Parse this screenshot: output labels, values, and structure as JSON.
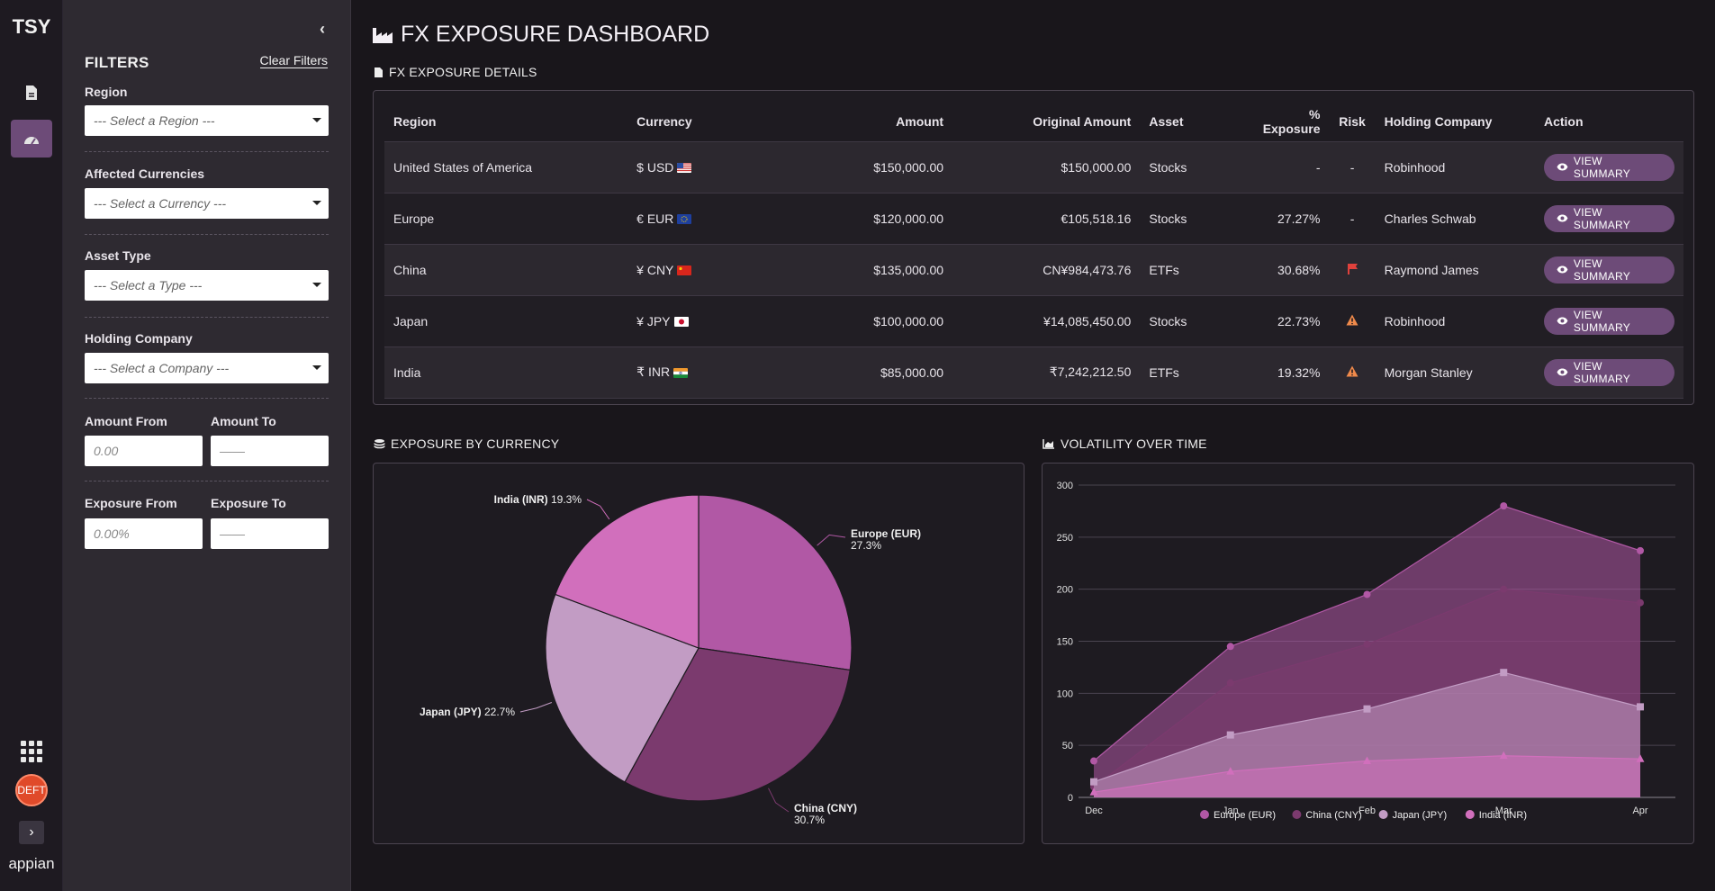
{
  "nav": {
    "logo_text": "TSY",
    "avatar_text": "DEFT",
    "brand": "appian"
  },
  "filters": {
    "title": "FILTERS",
    "clear_label": "Clear Filters",
    "region_label": "Region",
    "region_placeholder": "--- Select a Region ---",
    "currency_label": "Affected Currencies",
    "currency_placeholder": "--- Select a Currency ---",
    "asset_label": "Asset Type",
    "asset_placeholder": "--- Select a Type ---",
    "company_label": "Holding Company",
    "company_placeholder": "--- Select a Company ---",
    "amount_from_label": "Amount From",
    "amount_from_placeholder": "0.00",
    "amount_to_label": "Amount To",
    "amount_to_placeholder": "——",
    "exposure_from_label": "Exposure From",
    "exposure_from_placeholder": "0.00%",
    "exposure_to_label": "Exposure To",
    "exposure_to_placeholder": "——"
  },
  "page": {
    "title": "FX EXPOSURE DASHBOARD",
    "details_title": "FX EXPOSURE DETAILS",
    "pie_title": "EXPOSURE BY CURRENCY",
    "line_title": "VOLATILITY OVER TIME"
  },
  "table": {
    "headers": {
      "region": "Region",
      "currency": "Currency",
      "amount": "Amount",
      "original": "Original Amount",
      "asset": "Asset",
      "exposure": "% Exposure",
      "risk": "Risk",
      "company": "Holding Company",
      "action": "Action"
    },
    "rows": [
      {
        "region": "United States of America",
        "currency": "$ USD",
        "flag": "us",
        "amount": "$150,000.00",
        "original": "$150,000.00",
        "asset": "Stocks",
        "exposure": "-",
        "risk": "-",
        "risk_icon": "",
        "company": "Robinhood",
        "action": "VIEW SUMMARY"
      },
      {
        "region": "Europe",
        "currency": "€ EUR",
        "flag": "eu",
        "amount": "$120,000.00",
        "original": "€105,518.16",
        "asset": "Stocks",
        "exposure": "27.27%",
        "risk": "-",
        "risk_icon": "",
        "company": "Charles Schwab",
        "action": "VIEW SUMMARY"
      },
      {
        "region": "China",
        "currency": "¥ CNY",
        "flag": "cn",
        "amount": "$135,000.00",
        "original": "CN¥984,473.76",
        "asset": "ETFs",
        "exposure": "30.68%",
        "risk": "",
        "risk_icon": "flag-icon",
        "company": "Raymond James",
        "action": "VIEW SUMMARY"
      },
      {
        "region": "Japan",
        "currency": "¥ JPY",
        "flag": "jp",
        "amount": "$100,000.00",
        "original": "¥14,085,450.00",
        "asset": "Stocks",
        "exposure": "22.73%",
        "risk": "",
        "risk_icon": "warning-icon",
        "company": "Robinhood",
        "action": "VIEW SUMMARY"
      },
      {
        "region": "India",
        "currency": "₹ INR",
        "flag": "in",
        "amount": "$85,000.00",
        "original": "₹7,242,212.50",
        "asset": "ETFs",
        "exposure": "19.32%",
        "risk": "",
        "risk_icon": "warning-icon",
        "company": "Morgan Stanley",
        "action": "VIEW SUMMARY"
      }
    ]
  },
  "colors": {
    "accent": "#6d4b78",
    "flag_red": "#e0413c",
    "warn_orange": "#f08a4b",
    "eur": "#b158a5",
    "cny": "#7b3a6e",
    "jpy": "#c29cc4",
    "inr": "#d16fbc"
  },
  "chart_data": [
    {
      "type": "pie",
      "title": "EXPOSURE BY CURRENCY",
      "slices": [
        {
          "label": "Europe (EUR)",
          "value": 27.3,
          "display": "27.3%",
          "color": "#b158a5"
        },
        {
          "label": "China (CNY)",
          "value": 30.7,
          "display": "30.7%",
          "color": "#7b3a6e"
        },
        {
          "label": "Japan (JPY)",
          "value": 22.7,
          "display": "22.7%",
          "color": "#c29cc4"
        },
        {
          "label": "India (INR)",
          "value": 19.3,
          "display": "19.3%",
          "color": "#d16fbc"
        }
      ]
    },
    {
      "type": "area",
      "title": "VOLATILITY OVER TIME",
      "categories": [
        "Dec",
        "Jan",
        "Feb",
        "Mar",
        "Apr"
      ],
      "ylim": [
        0,
        300
      ],
      "yticks": [
        0,
        50,
        100,
        150,
        200,
        250,
        300
      ],
      "grid": true,
      "legend": "bottom",
      "series": [
        {
          "name": "Europe (EUR)",
          "values": [
            35,
            145,
            195,
            280,
            237
          ],
          "color": "#b158a5",
          "marker": "circle"
        },
        {
          "name": "China (CNY)",
          "values": [
            10,
            110,
            147,
            200,
            187
          ],
          "color": "#7b3a6e",
          "marker": "circle"
        },
        {
          "name": "Japan (JPY)",
          "values": [
            15,
            60,
            85,
            120,
            87
          ],
          "color": "#c29cc4",
          "marker": "square"
        },
        {
          "name": "India (INR)",
          "values": [
            5,
            25,
            35,
            40,
            37
          ],
          "color": "#d16fbc",
          "marker": "triangle"
        }
      ]
    }
  ]
}
